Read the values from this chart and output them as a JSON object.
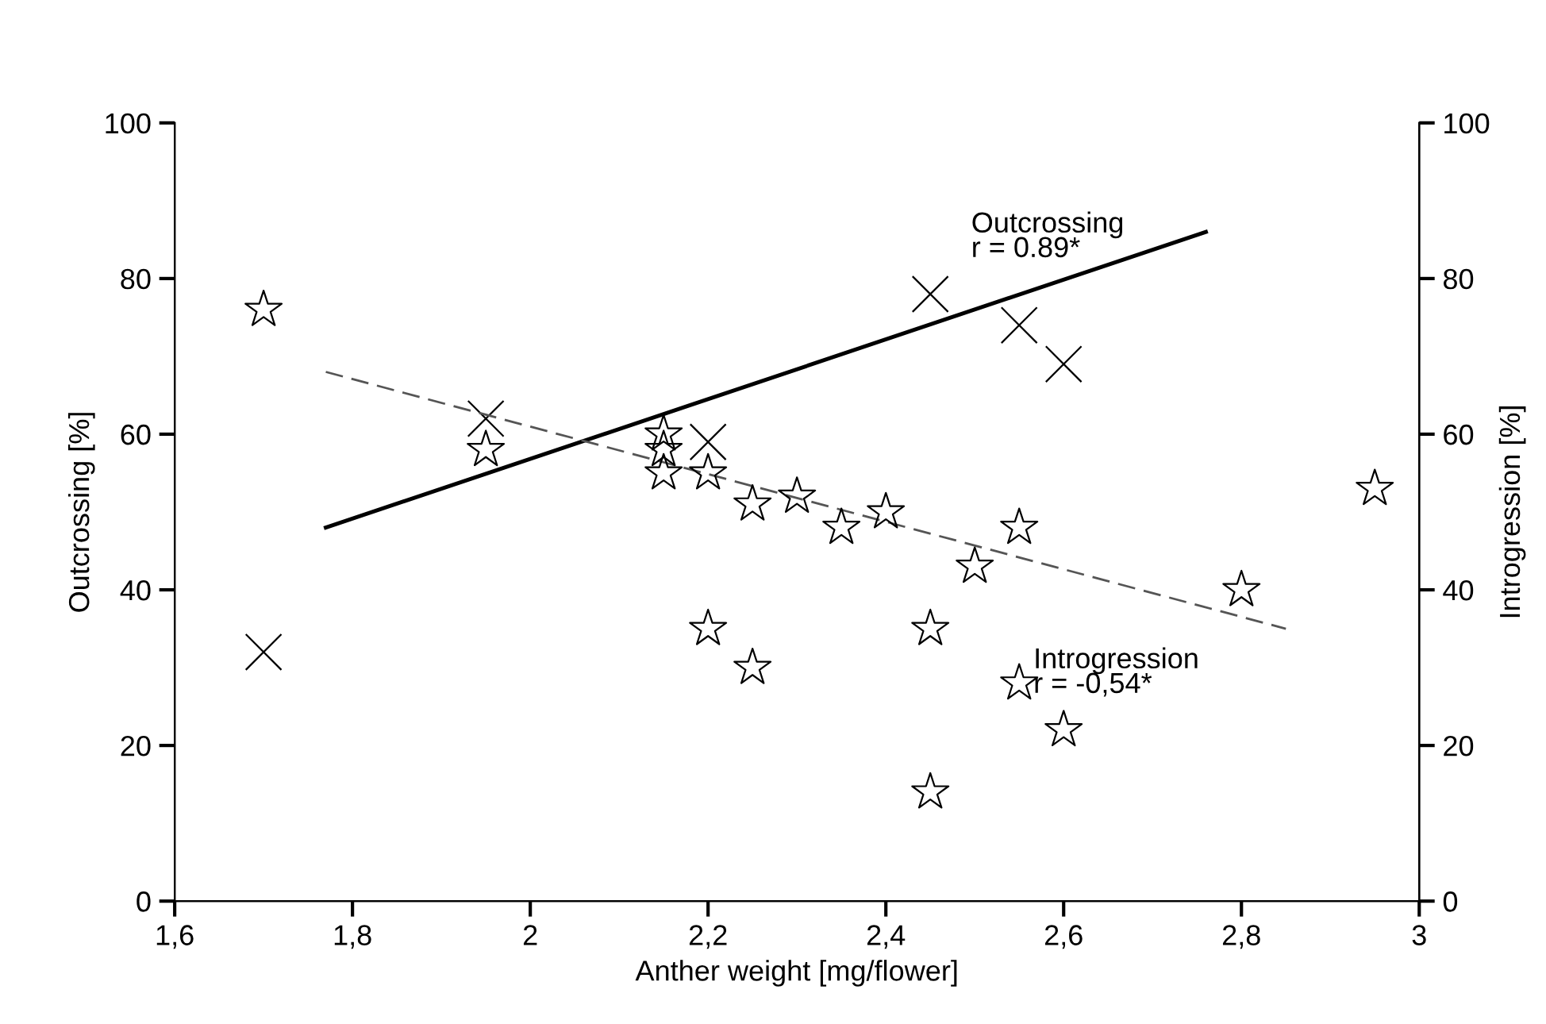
{
  "chart_data": {
    "type": "scatter",
    "xlabel": "Anther weight [mg/flower]",
    "ylabel": "Outcrossing [%]",
    "y2label": "Introgression [%]",
    "xlim": [
      1.6,
      3
    ],
    "ylim": [
      0,
      100
    ],
    "y2lim": [
      0,
      100
    ],
    "xticks": [
      {
        "value": 1.6,
        "label": "1,6"
      },
      {
        "value": 1.8,
        "label": "1,8"
      },
      2,
      {
        "value": 2.2,
        "label": "2,2"
      },
      {
        "value": 2.4,
        "label": "2,4"
      },
      {
        "value": 2.6,
        "label": "2,6"
      },
      {
        "value": 2.8,
        "label": "2,8"
      },
      3
    ],
    "yticks": [
      0,
      20,
      40,
      60,
      80,
      100
    ],
    "y2ticks": [
      0,
      20,
      40,
      60,
      80,
      100
    ],
    "grid": false,
    "legend": false,
    "series": [
      {
        "type": "scatter",
        "marker": "cross",
        "color": "#000000",
        "x": [
          1.7,
          1.95,
          2.2,
          2.45,
          2.55,
          2.6
        ],
        "values": [
          32,
          62,
          59,
          78,
          74,
          69
        ]
      },
      {
        "type": "scatter",
        "marker": "star",
        "axis": "y2",
        "color": "#000000",
        "x": [
          1.7,
          1.95,
          2.15,
          2.15,
          2.15,
          2.2,
          2.25,
          2.3,
          2.2,
          2.25,
          2.35,
          2.4,
          2.45,
          2.45,
          2.5,
          2.55,
          2.55,
          2.6,
          2.8,
          2.95
        ],
        "values": [
          76,
          58,
          60,
          58,
          55,
          55,
          51,
          52,
          35,
          30,
          48,
          50,
          35,
          14,
          43,
          48,
          28,
          22,
          40,
          53
        ]
      },
      {
        "type": "line",
        "line_style": "solid",
        "color": "#000000",
        "x": [
          1.77,
          2.76
        ],
        "values": [
          48,
          86
        ]
      },
      {
        "type": "line",
        "line_style": "dashed",
        "axis": "y2",
        "color": "#555555",
        "x": [
          1.77,
          2.85
        ],
        "values": [
          68,
          35
        ]
      }
    ],
    "annotations": [
      "Outcrossing\nr = 0.89*",
      "Introgression\nr = -0,54*"
    ]
  }
}
